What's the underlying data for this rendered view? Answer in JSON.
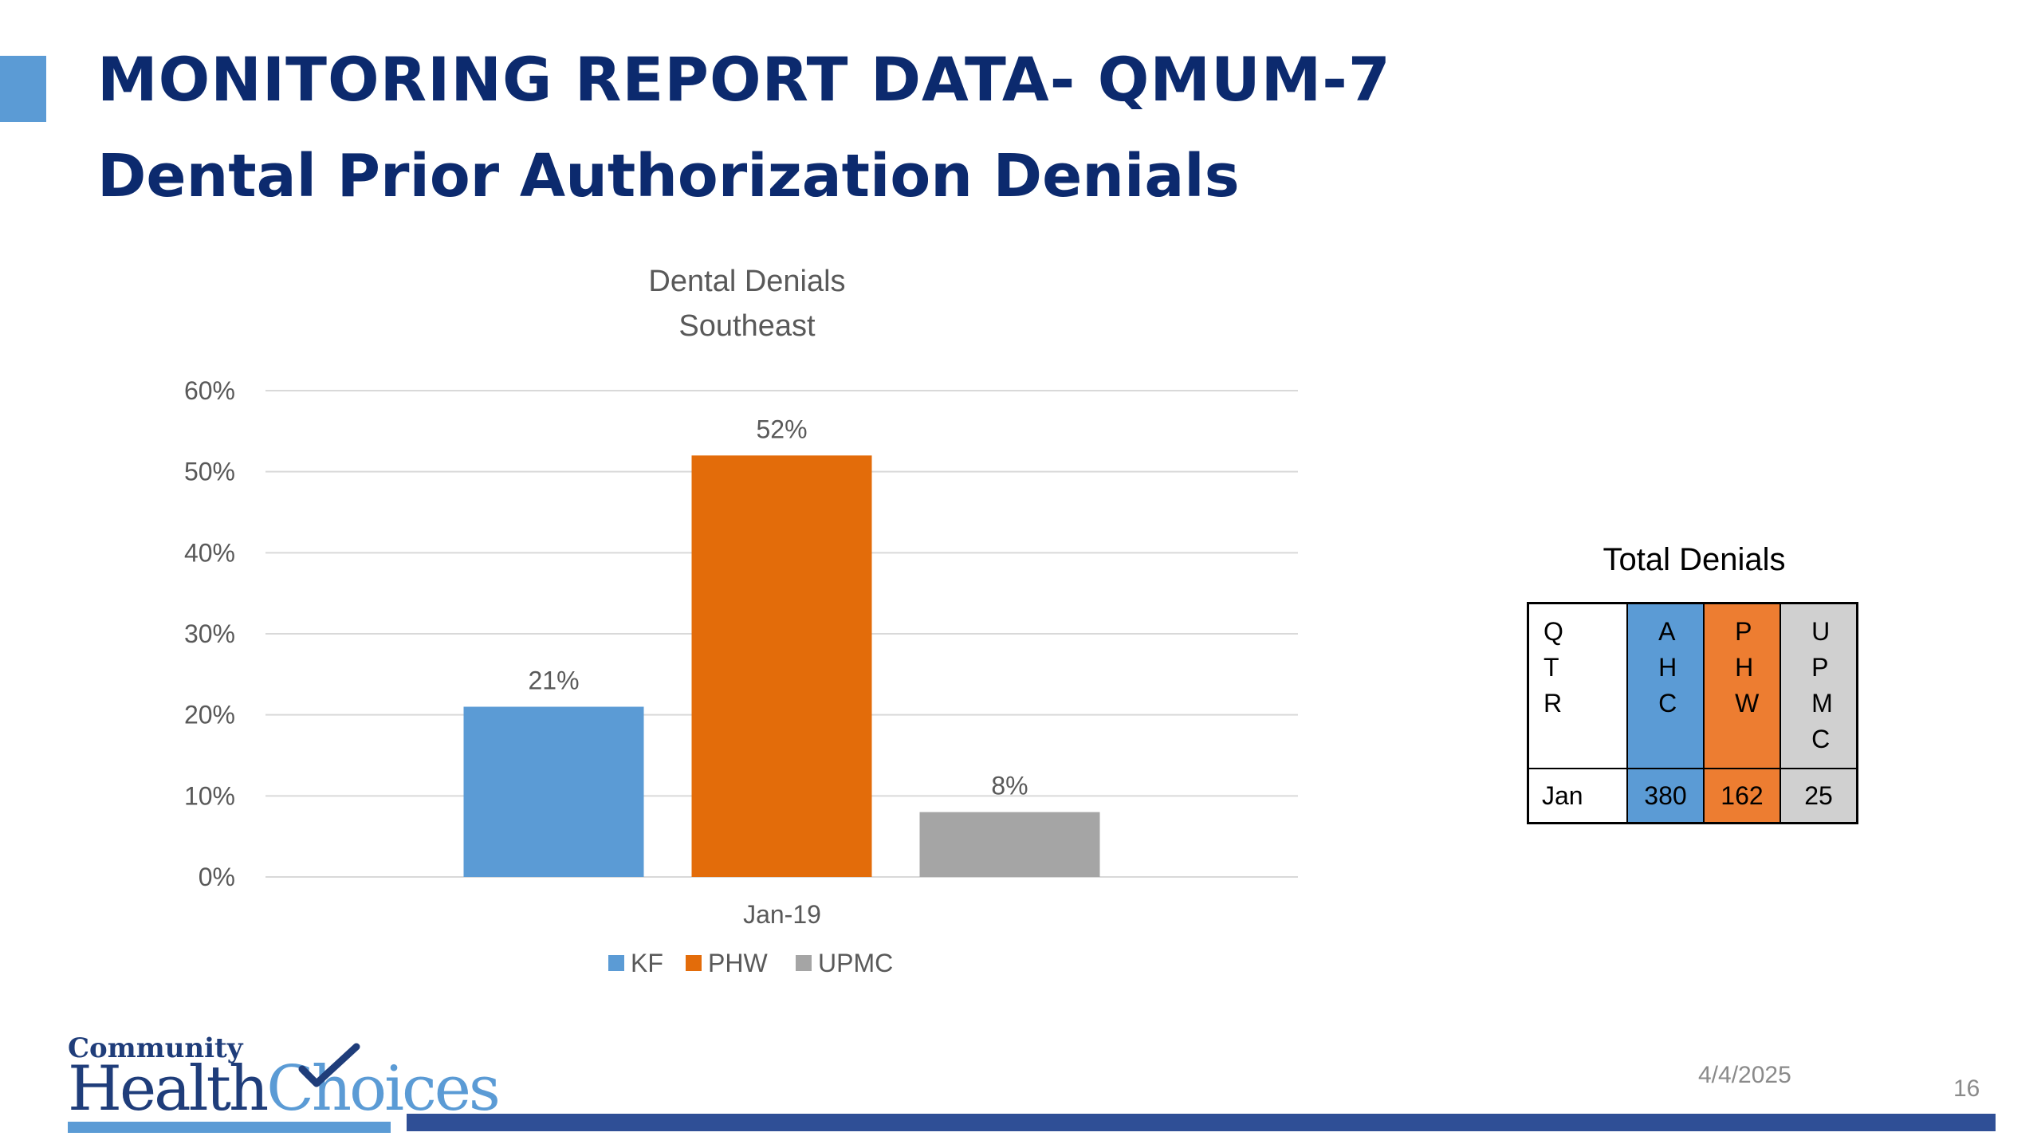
{
  "slide": {
    "title": "MONITORING REPORT DATA- QMUM-7",
    "subtitle": "Dental Prior Authorization Denials",
    "date": "4/4/2025",
    "page_number": "16",
    "accent_color": "#5b9bd5",
    "title_color": "#0c2a6e",
    "footer_bar_color": "#2f4f96"
  },
  "chart_data": {
    "type": "bar",
    "title": "Dental Denials",
    "subtitle": "Southeast",
    "categories": [
      "Jan-19"
    ],
    "series": [
      {
        "name": "KF",
        "values": [
          21
        ],
        "label": "21%",
        "color": "#5b9bd5"
      },
      {
        "name": "PHW",
        "values": [
          52
        ],
        "label": "52%",
        "color": "#e36c0a"
      },
      {
        "name": "UPMC",
        "values": [
          8
        ],
        "label": "8%",
        "color": "#a5a5a5"
      }
    ],
    "ylim": [
      0,
      60
    ],
    "y_ticks": [
      0,
      10,
      20,
      30,
      40,
      50,
      60
    ],
    "y_tick_labels": [
      "0%",
      "10%",
      "20%",
      "30%",
      "40%",
      "50%",
      "60%"
    ],
    "xlabel": "",
    "ylabel": "",
    "grid": true,
    "legend_position": "bottom"
  },
  "table": {
    "title": "Total Denials",
    "headers": [
      "QTR",
      "AHC",
      "PHW",
      "UPMC"
    ],
    "rows": [
      [
        "Jan",
        "380",
        "162",
        "25"
      ]
    ],
    "header_colors": [
      "#ffffff",
      "#5b9bd5",
      "#ed7d31",
      "#d0d0d0"
    ]
  },
  "logo": {
    "line1": "Community",
    "word1": "Health",
    "word2": "Choices"
  }
}
